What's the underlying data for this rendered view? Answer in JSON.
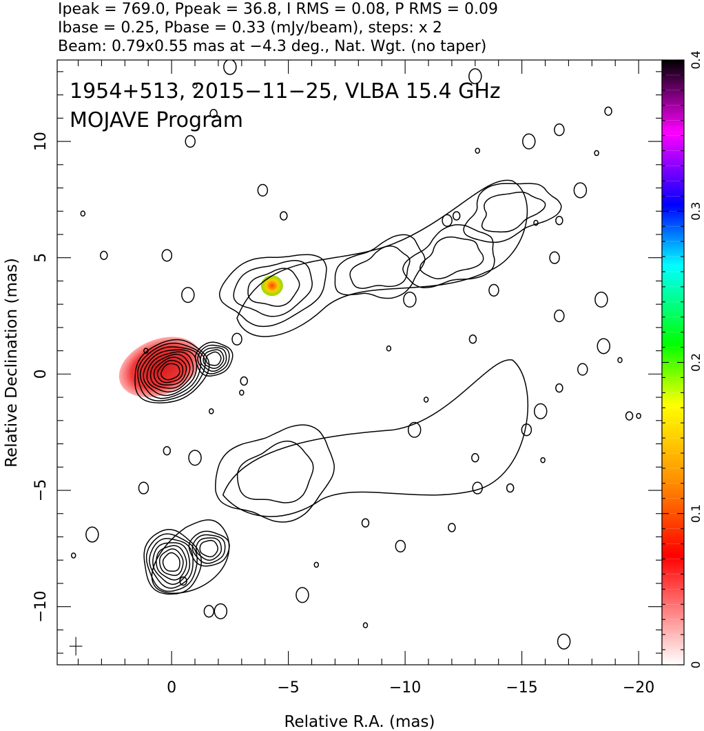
{
  "header": {
    "line1": "Ipeak = 769.0, Ppeak = 36.8, I RMS = 0.08, P RMS = 0.09",
    "line2": "Ibase = 0.25, Pbase = 0.33 (mJy/beam), steps: x 2",
    "line3": "Beam: 0.79x0.55 mas at −4.3 deg., Nat. Wgt. (no taper)"
  },
  "chart_data": {
    "type": "contour",
    "title_line1": "1954+513, 2015−11−25, VLBA 15.4 GHz",
    "title_line2": "MOJAVE Program",
    "xlabel": "Relative R.A. (mas)",
    "ylabel": "Relative Declination (mas)",
    "xlim": [
      4.9,
      -21.0
    ],
    "ylim": [
      -12.5,
      13.5
    ],
    "x_inverted": true,
    "xticks": [
      0,
      -5,
      -10,
      -15,
      -20
    ],
    "xtick_labels": [
      "0",
      "−5",
      "−10",
      "−15",
      "−20"
    ],
    "yticks": [
      -10,
      -5,
      0,
      5,
      10
    ],
    "ytick_labels": [
      "−10",
      "−5",
      "0",
      "5",
      "10"
    ],
    "colorbar": {
      "range": [
        0,
        0.4
      ],
      "ticks": [
        0,
        0.1,
        0.2,
        0.3,
        0.4
      ],
      "tick_labels": [
        "0",
        "0.1",
        "0.2",
        "0.3",
        "0.4"
      ],
      "colors": [
        "#ffffff",
        "#ff0000",
        "#ff8c00",
        "#ffff00",
        "#00ff00",
        "#00ffff",
        "#0000ff",
        "#ff00ff",
        "#000000"
      ]
    },
    "images": [
      {
        "name": "total_intensity_upper",
        "components": [
          {
            "x": 0.05,
            "y": 0.1,
            "levels": 9
          },
          {
            "x": -1.8,
            "y": 0.65,
            "levels": 5
          },
          {
            "x": -4.4,
            "y": 3.7,
            "levels": 3
          },
          {
            "x": -9.0,
            "y": 4.5,
            "levels": 2
          },
          {
            "x": -12.0,
            "y": 5.0,
            "levels": 2
          },
          {
            "x": -14.5,
            "y": 7.0,
            "levels": 2
          }
        ]
      },
      {
        "name": "polarization_lower",
        "offset_y": -8.1,
        "components": [
          {
            "x": 0.0,
            "y": -8.1,
            "levels": 7
          },
          {
            "x": -1.6,
            "y": -7.5,
            "levels": 4
          },
          {
            "x": -4.5,
            "y": -4.3,
            "levels": 2
          }
        ]
      }
    ],
    "beam": {
      "major": 0.79,
      "minor": 0.55,
      "pa_deg": -4.3
    }
  }
}
